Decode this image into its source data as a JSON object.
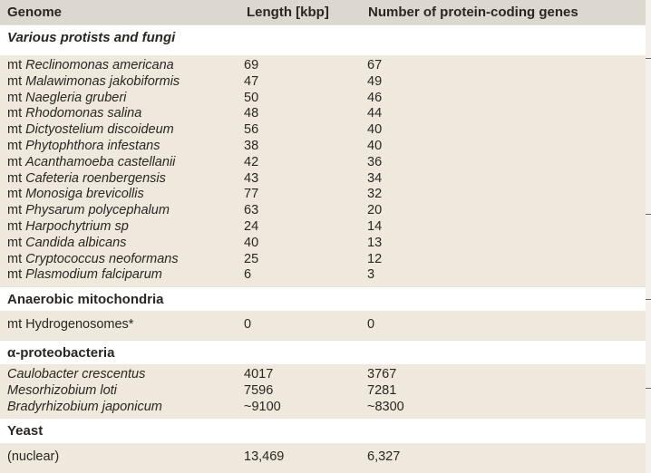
{
  "headers": {
    "genome": "Genome",
    "length": "Length [kbp]",
    "genes": "Number of protein-coding genes"
  },
  "sections": [
    {
      "title": "Various protists and fungi",
      "italic": true,
      "rows": [
        {
          "prefix": "mt ",
          "name": "Reclinomonas americana",
          "length": "69",
          "genes": "67"
        },
        {
          "prefix": "mt ",
          "name": "Malawimonas jakobiformis",
          "length": "47",
          "genes": "49"
        },
        {
          "prefix": "mt ",
          "name": "Naegleria gruberi",
          "length": "50",
          "genes": "46"
        },
        {
          "prefix": "mt ",
          "name": "Rhodomonas salina",
          "length": "48",
          "genes": "44"
        },
        {
          "prefix": "mt ",
          "name": "Dictyostelium discoideum",
          "length": "56",
          "genes": "40"
        },
        {
          "prefix": "mt ",
          "name": "Phytophthora infestans",
          "length": "38",
          "genes": "40"
        },
        {
          "prefix": "mt ",
          "name": "Acanthamoeba castellanii",
          "length": "42",
          "genes": "36"
        },
        {
          "prefix": "mt ",
          "name": "Cafeteria roenbergensis",
          "length": "43",
          "genes": "34"
        },
        {
          "prefix": "mt ",
          "name": "Monosiga brevicollis",
          "length": "77",
          "genes": "32"
        },
        {
          "prefix": "mt ",
          "name": "Physarum polycephalum",
          "length": "63",
          "genes": "20"
        },
        {
          "prefix": "mt ",
          "name": "Harpochytrium sp",
          "length": "24",
          "genes": "14"
        },
        {
          "prefix": "mt ",
          "name": "Candida albicans",
          "length": "40",
          "genes": "13"
        },
        {
          "prefix": "mt ",
          "name": "Cryptococcus neoformans",
          "length": "25",
          "genes": "12"
        },
        {
          "prefix": "mt ",
          "name": "Plasmodium falciparum",
          "length": "6",
          "genes": "3"
        }
      ]
    },
    {
      "title": "Anaerobic mitochondria",
      "italic": false,
      "rows": [
        {
          "prefix": "mt Hydrogenosomes*",
          "name": "",
          "length": "0",
          "genes": "0"
        }
      ]
    },
    {
      "title": "α-proteobacteria",
      "italic": false,
      "rows": [
        {
          "prefix": "",
          "name": "Caulobacter crescentus",
          "length": "4017",
          "genes": "3767"
        },
        {
          "prefix": "",
          "name": "Mesorhizobium loti",
          "length": "7596",
          "genes": "7281"
        },
        {
          "prefix": "",
          "name": "Bradyrhizobium japonicum",
          "length": "~9100",
          "genes": "~8300"
        }
      ]
    },
    {
      "title": "Yeast",
      "italic": false,
      "rows": [
        {
          "prefix": "(nuclear)",
          "name": "",
          "length": "13,469",
          "genes": "6,327"
        }
      ]
    }
  ]
}
